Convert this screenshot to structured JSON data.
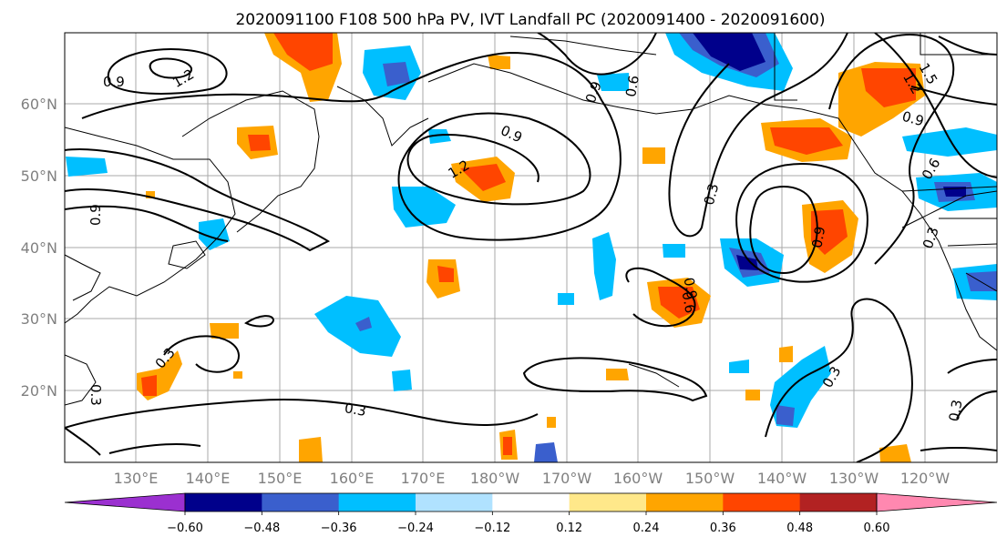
{
  "title": "2020091100 F108 500 hPa PV, IVT Landfall PC (2020091400 - 2020091600)",
  "map": {
    "lon_labels": [
      "130°E",
      "140°E",
      "150°E",
      "160°E",
      "170°E",
      "180°W",
      "170°W",
      "160°W",
      "150°W",
      "140°W",
      "130°W",
      "120°W"
    ],
    "lat_labels": [
      "60°N",
      "50°N",
      "40°N",
      "30°N",
      "20°N"
    ],
    "contour_labels": [
      "0.9",
      "1.2",
      "1.2",
      "0.9",
      "0.9",
      "0.6",
      "0.3",
      "0.9",
      "0.6",
      "0.9",
      "1.2",
      "1.5",
      "0.9",
      "0.6",
      "0.3",
      "0.3",
      "0.3",
      "0.3",
      "0.9",
      "0.3",
      "0.3"
    ]
  },
  "colorbar": {
    "tick_labels": [
      "−0.60",
      "−0.48",
      "−0.36",
      "−0.24",
      "−0.12",
      "0.12",
      "0.24",
      "0.36",
      "0.48",
      "0.60"
    ],
    "colors": [
      "#9b30d0",
      "#00008b",
      "#3a5fcd",
      "#00bfff",
      "#b0e2ff",
      "#ffffff",
      "#ffe88a",
      "#ffa500",
      "#ff4500",
      "#b22222",
      "#ff88b0"
    ]
  }
}
